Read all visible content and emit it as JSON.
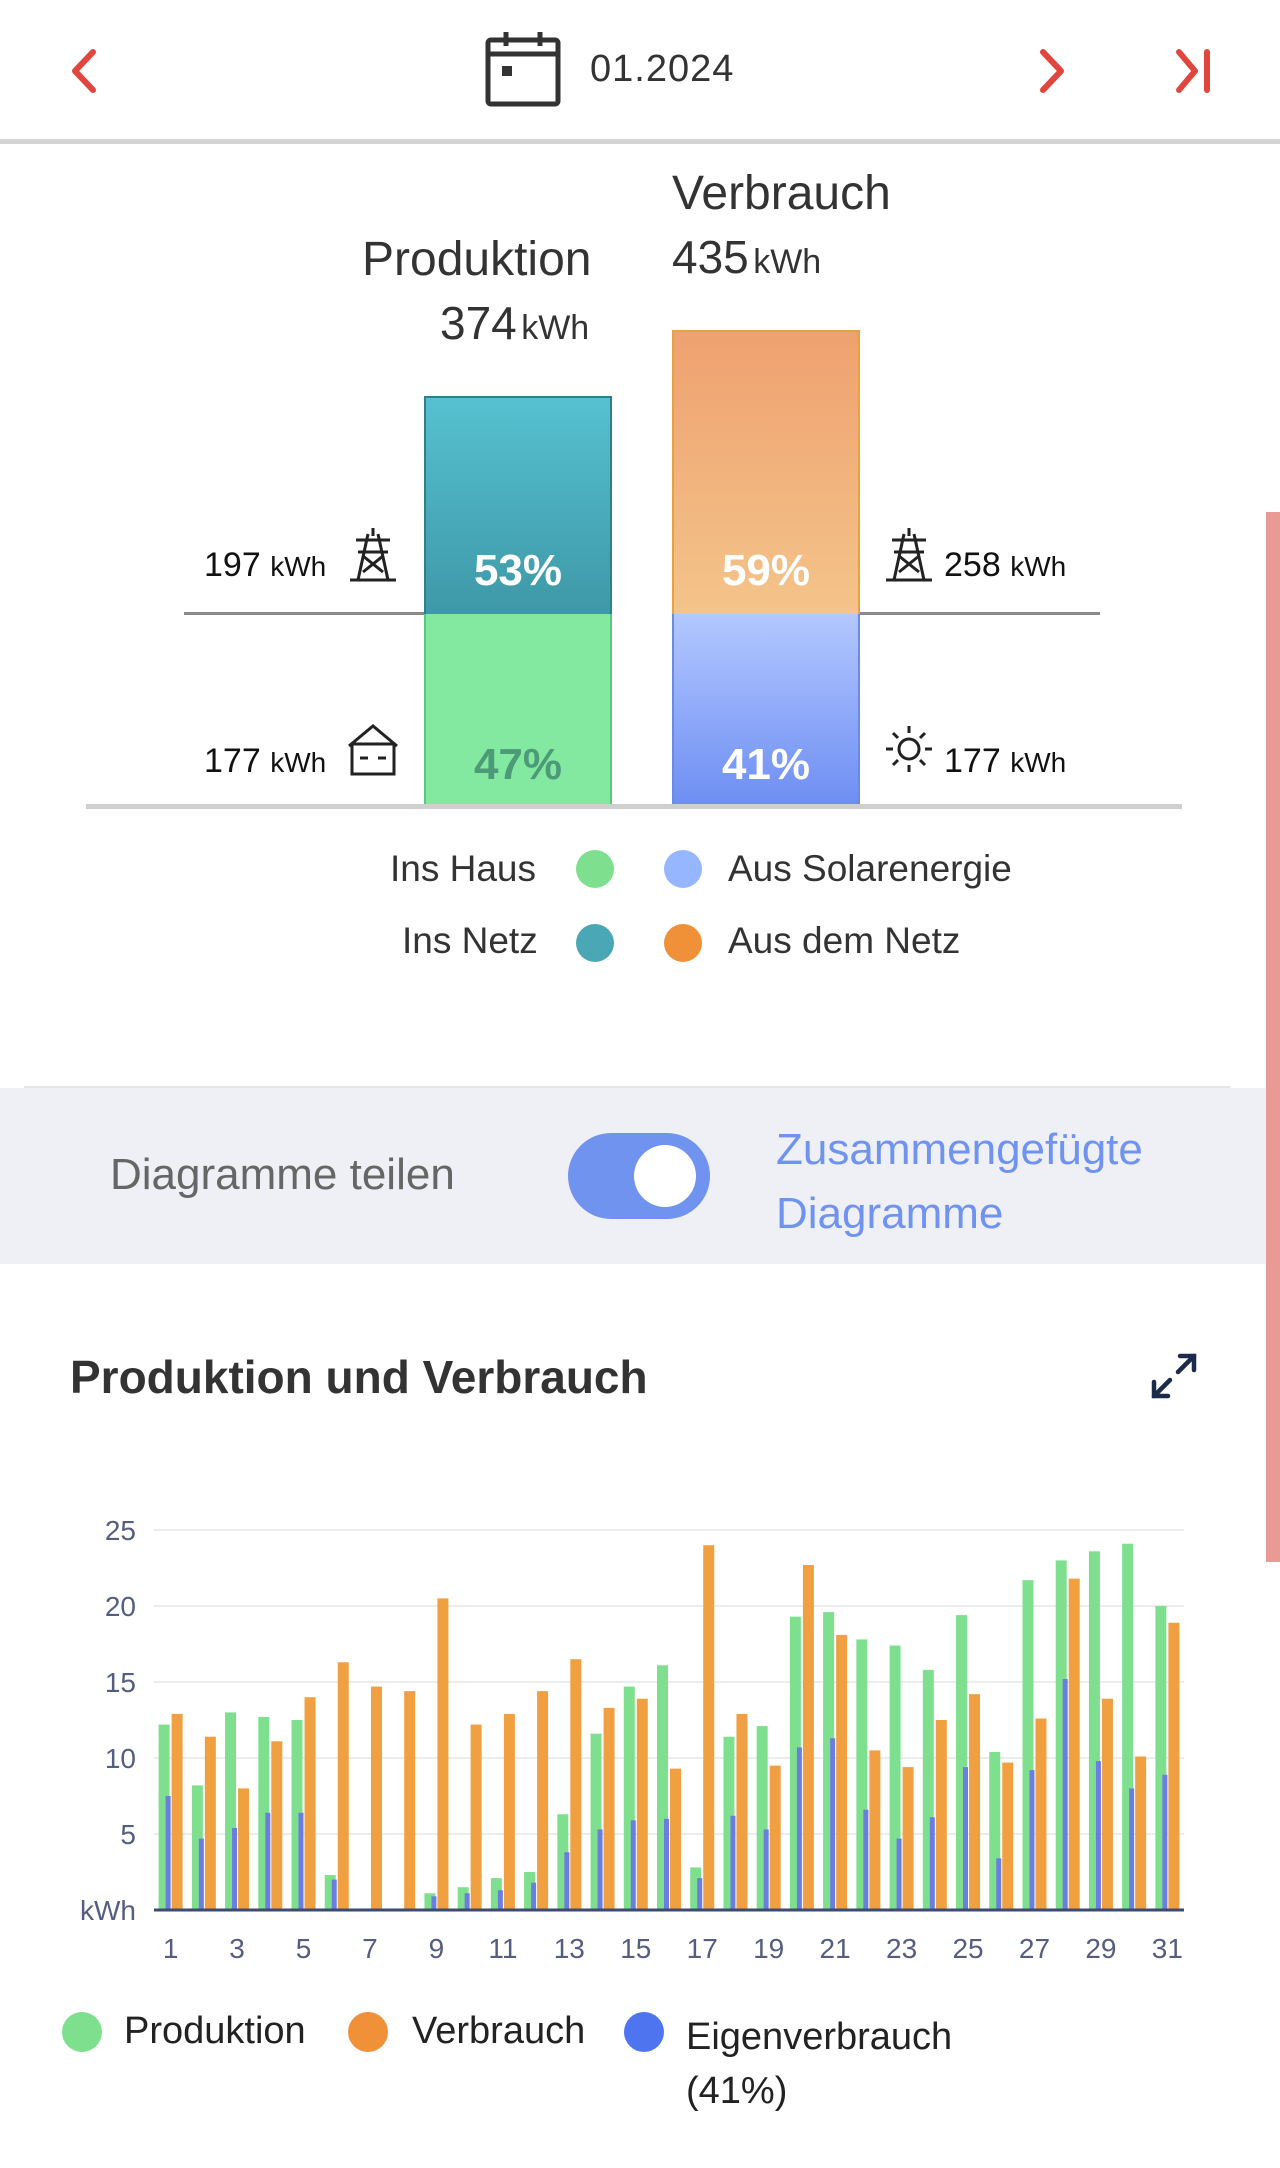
{
  "header": {
    "date": "01.2024",
    "prev_icon": "chevron-left-icon",
    "next_icon": "chevron-right-icon",
    "last_icon": "skip-to-end-icon",
    "calendar_icon": "calendar-icon",
    "accent_color": "#e0463e"
  },
  "summary": {
    "production": {
      "title": "Produktion",
      "value": "374",
      "unit": "kWh"
    },
    "consumption": {
      "title": "Verbrauch",
      "value": "435",
      "unit": "kWh"
    },
    "production_to_grid": {
      "value": "197",
      "unit": "kWh",
      "percent": "53%",
      "icon": "power-tower-icon",
      "color": "#4fb4c4"
    },
    "production_to_house": {
      "value": "177",
      "unit": "kWh",
      "percent": "47%",
      "icon": "house-icon",
      "color": "#80e59e"
    },
    "consumption_from_grid": {
      "value": "258",
      "unit": "kWh",
      "percent": "59%",
      "icon": "power-tower-icon",
      "color": "#eea56f"
    },
    "consumption_from_solar": {
      "value": "177",
      "unit": "kWh",
      "percent": "41%",
      "icon": "sun-icon",
      "color": "#8aa7ff"
    }
  },
  "summary_legend": [
    {
      "label": "Ins Haus",
      "color": "#7ee08f"
    },
    {
      "label": "Aus Solarenergie",
      "color": "#96b6ff"
    },
    {
      "label": "Ins Netz",
      "color": "#4aa7b5"
    },
    {
      "label": "Aus dem Netz",
      "color": "#f0913a"
    }
  ],
  "toggle": {
    "left_label": "Diagramme teilen",
    "right_label_line1": "Zusammengefügte",
    "right_label_line2": "Diagramme",
    "on": true,
    "color": "#6f93ef"
  },
  "chart_section": {
    "title": "Produktion und Verbrauch",
    "expand_icon": "expand-icon"
  },
  "chart_data": {
    "type": "bar",
    "ylabel": "kWh",
    "ylim": [
      0,
      25
    ],
    "yticks": [
      5,
      10,
      15,
      20,
      25
    ],
    "xticks": [
      1,
      3,
      5,
      7,
      9,
      11,
      13,
      15,
      17,
      19,
      21,
      23,
      25,
      27,
      29,
      31
    ],
    "categories": [
      1,
      2,
      3,
      4,
      5,
      6,
      7,
      8,
      9,
      10,
      11,
      12,
      13,
      14,
      15,
      16,
      17,
      18,
      19,
      20,
      21,
      22,
      23,
      24,
      25,
      26,
      27,
      28,
      29,
      30,
      31
    ],
    "series": [
      {
        "name": "Produktion",
        "color": "#7ee08f",
        "values": [
          12.2,
          8.2,
          13.0,
          12.7,
          12.5,
          2.3,
          0.1,
          0.1,
          1.1,
          1.5,
          2.1,
          2.5,
          6.3,
          11.6,
          14.7,
          16.1,
          2.8,
          11.4,
          12.1,
          19.3,
          19.6,
          17.8,
          17.4,
          15.8,
          19.4,
          10.4,
          21.7,
          23.0,
          23.6,
          24.1,
          20.0
        ]
      },
      {
        "name": "Verbrauch",
        "color": "#f0a040",
        "values": [
          12.9,
          11.4,
          8.0,
          11.1,
          14.0,
          16.3,
          14.7,
          14.4,
          20.5,
          12.2,
          12.9,
          14.4,
          16.5,
          13.3,
          13.9,
          9.3,
          24.0,
          12.9,
          9.5,
          22.7,
          18.1,
          10.5,
          9.4,
          12.5,
          14.2,
          9.7,
          12.6,
          21.8,
          13.9,
          10.1,
          18.9
        ]
      },
      {
        "name": "Eigenverbrauch",
        "color": "#6b7de0",
        "values": [
          7.5,
          4.7,
          5.4,
          6.4,
          6.4,
          2.0,
          0.1,
          0.1,
          0.9,
          1.1,
          1.3,
          1.8,
          3.8,
          5.3,
          5.9,
          6.0,
          2.1,
          6.2,
          5.3,
          10.7,
          11.3,
          6.6,
          4.7,
          6.1,
          9.4,
          3.4,
          9.2,
          15.2,
          9.8,
          8.0,
          8.9
        ]
      }
    ]
  },
  "bottom_legend": [
    {
      "label": "Produktion",
      "color": "#7ee08f"
    },
    {
      "label": "Verbrauch",
      "color": "#f0913a"
    },
    {
      "label": "Eigenverbrauch",
      "sub": "(41%)",
      "color": "#4f74ef"
    }
  ]
}
